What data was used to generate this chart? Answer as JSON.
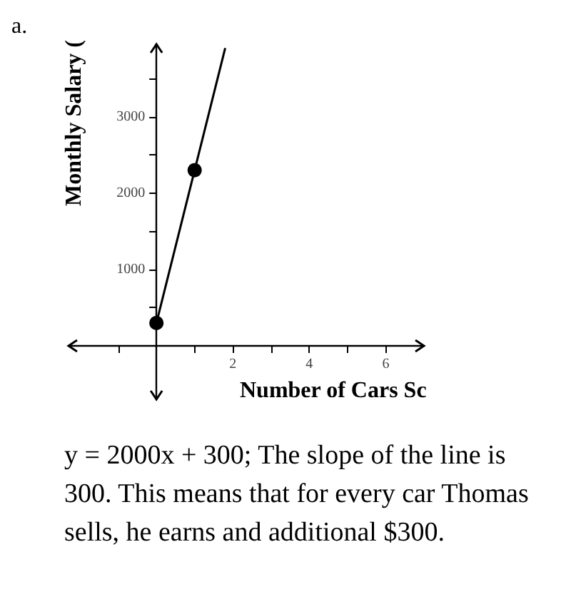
{
  "chart_data": {
    "type": "line",
    "xlabel": "Number of Cars Sc",
    "ylabel": "Monthly Salary (",
    "xlim": [
      -2.3,
      7
    ],
    "ylim": [
      -700,
      3950
    ],
    "xticks": [
      {
        "value": -1,
        "label": null
      },
      {
        "value": 1,
        "label": null
      },
      2,
      {
        "value": 3,
        "label": null
      },
      4,
      {
        "value": 5,
        "label": null
      },
      6
    ],
    "yticks": [
      {
        "value": 500,
        "label": null
      },
      1000,
      {
        "value": 1500,
        "label": null
      },
      2000,
      {
        "value": 2500,
        "label": null
      },
      3000,
      {
        "value": 3500,
        "label": null
      }
    ],
    "series": [
      {
        "type": "line",
        "color": "#000000",
        "x": [
          0,
          1.8
        ],
        "values": [
          300,
          3900
        ]
      },
      {
        "type": "scatter",
        "color": "#000000",
        "marker": "circle",
        "x": [
          0,
          1
        ],
        "values": [
          300,
          2300
        ]
      }
    ],
    "annotations": [
      "a.",
      "y = 2000x + 300;  The slope of the line is 300. This means that for every car Thomas sells, he earns and additional $300."
    ]
  }
}
